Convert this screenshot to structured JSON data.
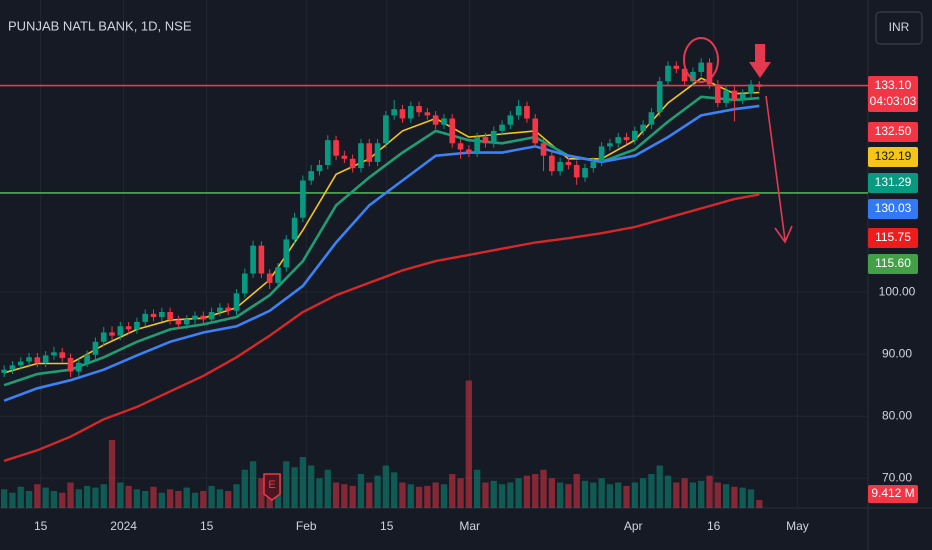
{
  "chart_data": {
    "type": "candlestick",
    "title": "PUNJAB NATL BANK, 1D, NSE",
    "currency_button": "INR",
    "earnings_marker": "E",
    "up_color": "#089981",
    "down_color": "#f23645",
    "xlim": [
      -0.5,
      104.1
    ],
    "xticks": [
      {
        "value": 4.4,
        "label": "15"
      },
      {
        "value": 14.4,
        "label": "2024"
      },
      {
        "value": 24.4,
        "label": "15"
      },
      {
        "value": 36.4,
        "label": "Feb"
      },
      {
        "value": 46.1,
        "label": "15"
      },
      {
        "value": 56.1,
        "label": "Mar"
      },
      {
        "value": 75.8,
        "label": "Apr"
      },
      {
        "value": 85.5,
        "label": "16"
      },
      {
        "value": 95.6,
        "label": "May"
      }
    ],
    "ylim": [
      65.2,
      147.1
    ],
    "yticks": [
      {
        "value": 70,
        "label": "70.00"
      },
      {
        "value": 80,
        "label": "80.00"
      },
      {
        "value": 90,
        "label": "90.00"
      },
      {
        "value": 100,
        "label": "100.00"
      }
    ],
    "grid": true,
    "open": [
      87,
      87.5,
      88.2,
      88.8,
      89.5,
      88.6,
      89.8,
      90.3,
      89.4,
      87.2,
      88.6,
      89.9,
      92,
      93.5,
      93,
      94.5,
      94,
      95.2,
      96.5,
      96,
      96.8,
      95.5,
      94.8,
      95.6,
      96.2,
      95.6,
      96.8,
      97.5,
      97,
      99.8,
      103,
      107.5,
      103,
      101.5,
      104,
      108.5,
      112,
      118,
      119.5,
      120.5,
      124.5,
      122,
      121.5,
      120,
      124,
      121,
      124,
      128.5,
      129.5,
      128,
      130,
      129,
      128.5,
      127,
      128,
      124,
      123,
      122.5,
      125,
      124,
      126,
      127,
      128.5,
      130,
      128,
      124,
      122,
      119.5,
      121,
      120.5,
      118.5,
      120,
      121,
      123.5,
      124,
      125,
      124.5,
      126,
      127,
      129,
      134,
      136.5,
      136,
      134,
      135.5,
      137,
      133.5,
      130.5,
      132.5,
      131,
      132,
      133.5
    ],
    "high": [
      88.2,
      88.9,
      89.5,
      90.2,
      90.2,
      90.5,
      91.2,
      91,
      90.1,
      89.3,
      90.6,
      92.7,
      94.4,
      94.5,
      95.2,
      95.2,
      95.9,
      97.2,
      97.2,
      97.5,
      97.5,
      96.2,
      96.3,
      96.9,
      96.9,
      97.5,
      98.2,
      98.2,
      100.5,
      103.8,
      108.3,
      108.2,
      103.7,
      104.7,
      109.2,
      112.8,
      118.8,
      120.5,
      121.3,
      125.3,
      125.2,
      122.8,
      122.2,
      124.7,
      124.7,
      124.7,
      129.2,
      131,
      130.2,
      130.7,
      130.7,
      129.7,
      129.2,
      128.7,
      128.7,
      124.7,
      123.7,
      125.7,
      125.7,
      126.7,
      127.7,
      129.2,
      131,
      130.7,
      128.7,
      124.7,
      122.7,
      121.7,
      121.7,
      121.2,
      120.7,
      121.7,
      124.2,
      124.7,
      125.7,
      125.7,
      126.7,
      127.7,
      129.7,
      134.7,
      137.2,
      137.2,
      136.7,
      136.2,
      137.7,
      137.7,
      134.2,
      133.2,
      133.2,
      132.7,
      134.2,
      134
    ],
    "low": [
      86.3,
      86.8,
      87.5,
      88.1,
      87.9,
      87.9,
      89.1,
      88.7,
      86.3,
      86.5,
      87.9,
      89.2,
      91.3,
      92.3,
      92.3,
      93.3,
      93.3,
      94.5,
      95.3,
      95.3,
      94.8,
      94.1,
      94.1,
      94.9,
      94.9,
      94.9,
      96.1,
      96.3,
      96.3,
      99.1,
      102.3,
      102.3,
      100.5,
      100.8,
      103.3,
      107.8,
      111.3,
      117.3,
      118.8,
      119.8,
      121.3,
      120.8,
      119.3,
      119.3,
      120.3,
      120.3,
      123.3,
      127.8,
      127.3,
      127.3,
      128.3,
      127.8,
      126.3,
      126.3,
      123.3,
      121.5,
      121.8,
      121.8,
      123.3,
      123.3,
      125.3,
      126.3,
      127.8,
      127.3,
      123.3,
      119.5,
      118.8,
      118.8,
      119.8,
      117.3,
      117.8,
      119.3,
      120.3,
      122.8,
      123.3,
      123.8,
      123.8,
      125.3,
      126.3,
      128.3,
      133.3,
      135.3,
      133.3,
      133.3,
      134.8,
      132.8,
      129.8,
      129.8,
      127.5,
      130.3,
      131.3,
      132.5
    ],
    "close": [
      87.5,
      88.2,
      88.8,
      89.5,
      88.6,
      89.8,
      90.3,
      89.4,
      87.2,
      88.6,
      89.9,
      92,
      93.5,
      93,
      94.5,
      94,
      95.2,
      96.5,
      96,
      96.8,
      95.5,
      94.8,
      95.6,
      96.2,
      95.6,
      96.8,
      97.5,
      97,
      99.8,
      103,
      107.5,
      103,
      101.5,
      104,
      108.5,
      112,
      118,
      119.5,
      120.5,
      124.5,
      122,
      121.5,
      120,
      124,
      121,
      124,
      128.5,
      129.5,
      128,
      130,
      129,
      128.5,
      127,
      128,
      124,
      123,
      122.5,
      125,
      124,
      126,
      127,
      128.5,
      130,
      128,
      124,
      122,
      119.5,
      121,
      120.5,
      118.5,
      120,
      121,
      123.5,
      124,
      125,
      124.5,
      126,
      127,
      129,
      134,
      136.5,
      136,
      134,
      135.5,
      137,
      133.5,
      130.5,
      132.5,
      131,
      132,
      133.5,
      133.1
    ],
    "volume": [
      22,
      18,
      25,
      20,
      28,
      24,
      20,
      18,
      30,
      22,
      26,
      24,
      28,
      80,
      30,
      26,
      22,
      20,
      25,
      18,
      22,
      20,
      24,
      18,
      20,
      26,
      22,
      20,
      28,
      45,
      55,
      35,
      30,
      40,
      55,
      48,
      60,
      50,
      35,
      45,
      30,
      28,
      26,
      40,
      30,
      38,
      50,
      42,
      30,
      28,
      25,
      26,
      30,
      28,
      40,
      35,
      150,
      45,
      30,
      32,
      28,
      30,
      35,
      38,
      40,
      45,
      35,
      30,
      28,
      40,
      32,
      30,
      35,
      28,
      30,
      26,
      30,
      35,
      40,
      50,
      38,
      30,
      35,
      30,
      32,
      38,
      30,
      28,
      25,
      24,
      22,
      9.412
    ],
    "volume_lim": [
      0,
      160
    ],
    "volume_label": "9.412 M",
    "ema_x": [
      0,
      4,
      8,
      12,
      16,
      20,
      24,
      28,
      32,
      36,
      40,
      44,
      48,
      52,
      56,
      60,
      64,
      68,
      72,
      76,
      80,
      84,
      88,
      91
    ],
    "emas": [
      {
        "color": "#f5c518",
        "values": [
          87,
          88.5,
          88.5,
          91.5,
          94,
          95.5,
          95.8,
          97.5,
          102,
          110,
          119,
          121.5,
          126,
          128,
          125,
          125.5,
          126,
          121.5,
          121.5,
          124.5,
          130.5,
          134.5,
          132,
          132.19
        ]
      },
      {
        "color": "#1f9e73",
        "values": [
          85,
          86.8,
          87.5,
          89.5,
          92,
          94,
          94.8,
          96,
          99.5,
          105,
          114,
          118.5,
          122.5,
          126,
          124.5,
          124,
          125,
          122,
          121,
          123,
          127.5,
          131.5,
          131,
          131.29
        ]
      },
      {
        "color": "#3b82f6",
        "values": [
          82.5,
          84.5,
          85.8,
          87.5,
          89.8,
          92,
          93.5,
          94.5,
          97,
          101,
          108,
          114,
          118,
          122,
          122.5,
          122.5,
          123.5,
          122,
          121,
          122,
          125,
          128.5,
          129.5,
          130.03
        ]
      },
      {
        "color": "#d62828",
        "values": [
          72.8,
          74.5,
          76.7,
          79.5,
          81.5,
          84,
          86.5,
          89.5,
          93,
          96.8,
          99.5,
          101.5,
          103.5,
          105,
          106,
          107,
          108,
          108.7,
          109.5,
          110.5,
          112,
          113.5,
          115,
          115.75
        ]
      }
    ],
    "levels": [
      {
        "value": 133.3,
        "color": "#f23645"
      },
      {
        "value": 116,
        "color": "#4caf50"
      }
    ],
    "price_tags": [
      {
        "label": "133.10",
        "timer": "04:03:03",
        "color": "#f23645",
        "text_color": "#ffffff"
      },
      {
        "label": "132.50",
        "color": "#f23645",
        "text_color": "#ffffff"
      },
      {
        "label": "132.19",
        "color": "#f5c518",
        "text_color": "#131722"
      },
      {
        "label": "131.29",
        "color": "#089981",
        "text_color": "#ffffff"
      },
      {
        "label": "130.03",
        "color": "#3179f5",
        "text_color": "#ffffff"
      },
      {
        "label": "115.75",
        "color": "#ee1c1c",
        "text_color": "#ffffff"
      },
      {
        "label": "115.60",
        "color": "#43a047",
        "text_color": "#ffffff"
      }
    ]
  }
}
